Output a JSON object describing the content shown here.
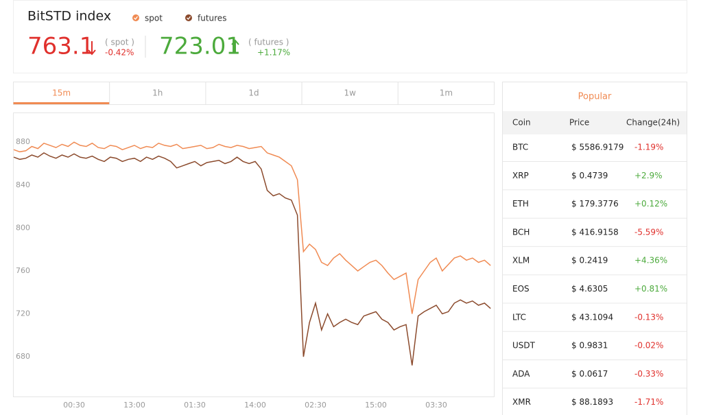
{
  "header": {
    "title": "BitSTD index",
    "spot": {
      "price": "763.1",
      "label": "( spot )",
      "change": "-0.42%"
    },
    "futures": {
      "price": "723.01",
      "label": "( futures )",
      "change": "+1.17%"
    }
  },
  "tabs": [
    "15m",
    "1h",
    "1d",
    "1w",
    "1m"
  ],
  "chart_data": {
    "type": "line",
    "categories": [
      null,
      null,
      null,
      null,
      null,
      null,
      null,
      null,
      null,
      null,
      "00:30",
      null,
      null,
      null,
      null,
      null,
      null,
      null,
      null,
      null,
      "13:00",
      null,
      null,
      null,
      null,
      null,
      null,
      null,
      null,
      null,
      "01:30",
      null,
      null,
      null,
      null,
      null,
      null,
      null,
      null,
      null,
      "14:00",
      null,
      null,
      null,
      null,
      null,
      null,
      null,
      null,
      null,
      "02:30",
      null,
      null,
      null,
      null,
      null,
      null,
      null,
      null,
      null,
      "15:00",
      null,
      null,
      null,
      null,
      null,
      null,
      null,
      null,
      null,
      "03:30",
      null,
      null,
      null,
      null,
      null,
      null,
      null,
      null,
      null
    ],
    "series": [
      {
        "name": "spot",
        "color": "#f08a52",
        "values": [
          873,
          871,
          872,
          876,
          874,
          879,
          877,
          875,
          878,
          876,
          880,
          877,
          876,
          879,
          875,
          874,
          877,
          876,
          873,
          875,
          877,
          874,
          876,
          875,
          879,
          877,
          876,
          878,
          874,
          875,
          876,
          877,
          874,
          875,
          878,
          876,
          875,
          877,
          876,
          874,
          875,
          876,
          870,
          868,
          866,
          862,
          858,
          845,
          778,
          785,
          780,
          768,
          765,
          772,
          776,
          770,
          765,
          760,
          764,
          768,
          770,
          765,
          758,
          752,
          755,
          758,
          720,
          752,
          760,
          768,
          772,
          760,
          766,
          772,
          774,
          770,
          772,
          768,
          770,
          765
        ]
      },
      {
        "name": "futures",
        "color": "#8b4a2c",
        "values": [
          866,
          864,
          865,
          868,
          866,
          870,
          867,
          865,
          868,
          866,
          869,
          866,
          865,
          867,
          864,
          862,
          866,
          865,
          862,
          864,
          865,
          862,
          866,
          864,
          867,
          865,
          862,
          856,
          858,
          860,
          862,
          858,
          861,
          862,
          863,
          860,
          862,
          866,
          862,
          860,
          862,
          855,
          835,
          830,
          832,
          828,
          826,
          812,
          680,
          712,
          730,
          705,
          720,
          708,
          712,
          715,
          712,
          710,
          718,
          720,
          722,
          715,
          712,
          705,
          708,
          710,
          672,
          718,
          722,
          725,
          728,
          720,
          722,
          730,
          733,
          730,
          732,
          728,
          730,
          725
        ]
      }
    ],
    "ylim": [
      643,
      907
    ],
    "yticks": [
      680,
      720,
      760,
      800,
      840,
      880
    ],
    "grid": false
  },
  "table": {
    "title": "Popular",
    "columns": [
      "Coin",
      "Price",
      "Change(24h)"
    ],
    "rows": [
      [
        "BTC",
        "$ 5586.9179",
        "-1.19%"
      ],
      [
        "XRP",
        "$ 0.4739",
        "+2.9%"
      ],
      [
        "ETH",
        "$ 179.3776",
        "+0.12%"
      ],
      [
        "BCH",
        "$ 416.9158",
        "-5.59%"
      ],
      [
        "XLM",
        "$ 0.2419",
        "+4.36%"
      ],
      [
        "EOS",
        "$ 4.6305",
        "+0.81%"
      ],
      [
        "LTC",
        "$ 43.1094",
        "-0.13%"
      ],
      [
        "USDT",
        "$ 0.9831",
        "-0.02%"
      ],
      [
        "ADA",
        "$ 0.0617",
        "-0.33%"
      ],
      [
        "XMR",
        "$ 88.1893",
        "-1.71%"
      ]
    ]
  }
}
